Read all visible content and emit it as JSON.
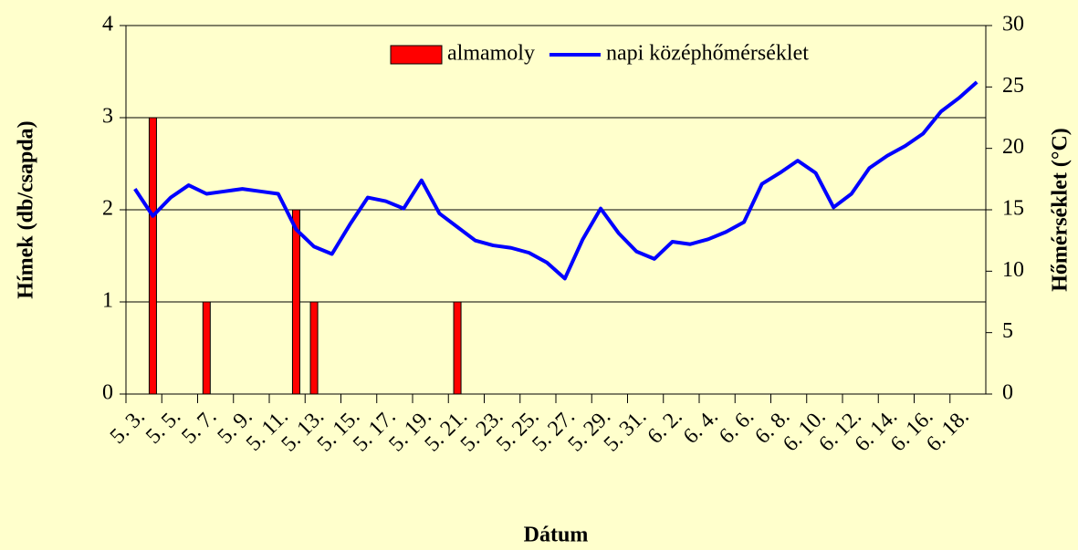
{
  "chart_data": {
    "type": "bar-line",
    "x_label": "Dátum",
    "y_label": "Hímek (db/csapda)",
    "y2_label": "Hőmérséklet (°C)",
    "categories": [
      "5. 3.",
      null,
      "5. 5.",
      null,
      "5. 7.",
      null,
      "5. 9.",
      null,
      "5. 11.",
      null,
      "5. 13.",
      null,
      "5. 15.",
      null,
      "5. 17.",
      null,
      "5. 19.",
      null,
      "5. 21.",
      null,
      "5. 23.",
      null,
      "5. 25.",
      null,
      "5. 27.",
      null,
      "5. 29.",
      null,
      "5. 31.",
      null,
      "6. 2.",
      null,
      "6. 4.",
      null,
      "6. 6.",
      null,
      "6. 8.",
      null,
      "6. 10.",
      null,
      "6. 12.",
      null,
      "6. 14.",
      null,
      "6. 16.",
      null,
      "6. 18.",
      null
    ],
    "series": [
      {
        "name": "almamoly",
        "kind": "bar",
        "color": "#ff0000",
        "values": [
          0,
          3,
          0,
          0,
          1,
          0,
          0,
          0,
          0,
          2,
          1,
          0,
          0,
          0,
          0,
          0,
          0,
          0,
          1,
          0,
          0,
          0,
          0,
          0,
          0,
          0,
          0,
          0,
          0,
          0,
          0,
          0,
          0,
          0,
          0,
          0,
          0,
          0,
          0,
          0,
          0,
          0,
          0,
          0,
          0,
          0,
          0,
          0
        ]
      },
      {
        "name": "napi középhőmérséklet",
        "kind": "line",
        "axis": "y2",
        "color": "#0000ff",
        "values": [
          16.7,
          14.5,
          16.0,
          17.0,
          16.3,
          16.5,
          16.7,
          16.5,
          16.3,
          13.4,
          12.0,
          11.4,
          13.8,
          16.0,
          15.7,
          15.1,
          17.4,
          14.7,
          13.6,
          12.5,
          12.1,
          11.9,
          11.5,
          10.7,
          9.4,
          12.6,
          15.1,
          13.1,
          11.6,
          11.0,
          12.4,
          12.2,
          12.6,
          13.2,
          14.0,
          17.1,
          18.0,
          19.0,
          18.0,
          15.2,
          16.3,
          18.4,
          19.4,
          20.2,
          21.2,
          23.0,
          24.1,
          25.4
        ]
      }
    ],
    "ylim": [
      0,
      4
    ],
    "yticks": [
      0,
      1,
      2,
      3,
      4
    ],
    "y2lim": [
      0,
      30
    ],
    "y2ticks": [
      0,
      5,
      10,
      15,
      20,
      25,
      30
    ],
    "grid": true,
    "legend": "top"
  }
}
